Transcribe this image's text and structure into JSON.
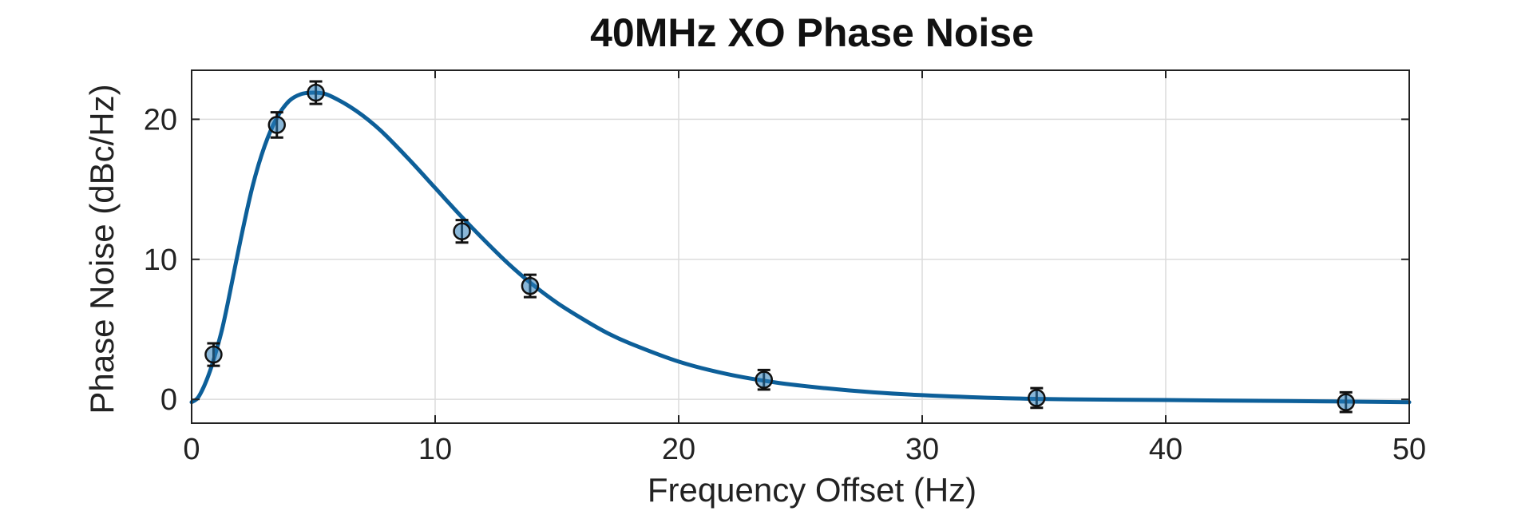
{
  "chart_data": {
    "type": "scatter",
    "title": "40MHz XO Phase Noise",
    "xlabel": "Frequency Offset (Hz)",
    "ylabel": "Phase Noise (dBc/Hz)",
    "xlim": [
      0,
      50
    ],
    "ylim": [
      -1.7,
      23.5
    ],
    "xticks": [
      0,
      10,
      20,
      30,
      40,
      50
    ],
    "yticks": [
      0,
      10,
      20
    ],
    "grid": true,
    "legend": "none",
    "series": [
      {
        "kind": "points-with-errorbars",
        "x": [
          0.9,
          3.5,
          5.1,
          11.1,
          13.9,
          23.5,
          34.7,
          47.4
        ],
        "y": [
          3.2,
          19.6,
          21.9,
          12.0,
          8.1,
          1.4,
          0.1,
          -0.2
        ],
        "yerr": [
          0.8,
          0.9,
          0.8,
          0.8,
          0.8,
          0.7,
          0.7,
          0.7
        ]
      },
      {
        "kind": "fit-curve",
        "x": [
          0,
          0.25,
          0.5,
          0.75,
          1,
          1.25,
          1.5,
          2,
          2.5,
          3,
          3.5,
          4,
          4.5,
          5,
          5.5,
          6,
          6.5,
          7,
          7.5,
          8,
          9,
          10,
          11,
          12,
          13,
          14,
          15,
          16,
          17,
          18,
          20,
          22,
          24,
          26,
          28,
          30,
          33,
          36,
          40,
          45,
          50
        ],
        "y": [
          -0.2,
          0.1,
          0.9,
          2.0,
          3.4,
          5.0,
          7.0,
          11.3,
          15.2,
          18.1,
          20.1,
          21.3,
          21.8,
          21.9,
          21.8,
          21.4,
          20.9,
          20.3,
          19.6,
          18.8,
          17.0,
          15.1,
          13.2,
          11.4,
          9.7,
          8.2,
          6.9,
          5.8,
          4.8,
          4.0,
          2.7,
          1.8,
          1.2,
          0.8,
          0.5,
          0.3,
          0.1,
          0.0,
          -0.05,
          -0.12,
          -0.2
        ]
      }
    ],
    "colors": {
      "curve": "#0d5f99",
      "marker_fill": "#2a7bb8",
      "errorbar": "#111111"
    }
  }
}
